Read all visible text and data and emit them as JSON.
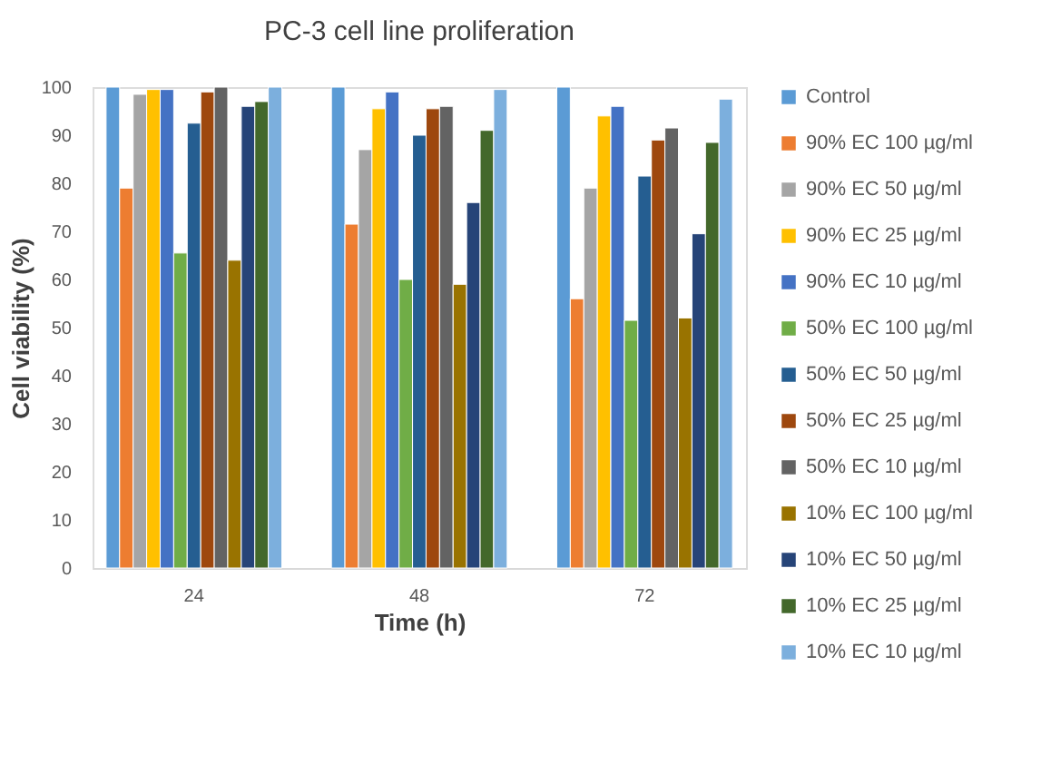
{
  "chart_data": {
    "type": "bar",
    "title": "PC-3 cell line proliferation",
    "xlabel": "Time (h)",
    "ylabel": "Cell viability (%)",
    "categories": [
      "24",
      "48",
      "72"
    ],
    "ylim": [
      0,
      100
    ],
    "yticks": [
      0,
      10,
      20,
      30,
      40,
      50,
      60,
      70,
      80,
      90,
      100
    ],
    "grid": false,
    "legend": "right",
    "series": [
      {
        "name": "Control",
        "color": "#5b9bd5",
        "values": [
          100,
          100,
          100
        ]
      },
      {
        "name": "90% EC 100  µg/ml",
        "color": "#ed7d31",
        "values": [
          79,
          71.5,
          56
        ]
      },
      {
        "name": "90% EC 50  µg/ml",
        "color": "#a5a5a5",
        "values": [
          98.5,
          87,
          79
        ]
      },
      {
        "name": "90% EC 25  µg/ml",
        "color": "#ffc000",
        "values": [
          99.5,
          95.5,
          94
        ]
      },
      {
        "name": "90% EC 10  µg/ml",
        "color": "#4472c4",
        "values": [
          99.5,
          99,
          96
        ]
      },
      {
        "name": "50% EC 100  µg/ml",
        "color": "#70ad47",
        "values": [
          65.5,
          60,
          51.5
        ]
      },
      {
        "name": "50% EC 50  µg/ml",
        "color": "#255e91",
        "values": [
          92.5,
          90,
          81.5
        ]
      },
      {
        "name": "50% EC 25  µg/ml",
        "color": "#9e480e",
        "values": [
          99,
          95.5,
          89
        ]
      },
      {
        "name": "50% EC 10  µg/ml",
        "color": "#636363",
        "values": [
          100,
          96,
          91.5
        ]
      },
      {
        "name": "10% EC 100 µg/ml",
        "color": "#997300",
        "values": [
          64,
          59,
          52
        ]
      },
      {
        "name": "10% EC 50 µg/ml",
        "color": "#264478",
        "values": [
          96,
          76,
          69.5
        ]
      },
      {
        "name": "10% EC 25  µg/ml",
        "color": "#43682b",
        "values": [
          97,
          91,
          88.5
        ]
      },
      {
        "name": "10% EC 10  µg/ml",
        "color": "#7cafdd",
        "values": [
          100,
          99.5,
          97.5
        ]
      }
    ]
  }
}
